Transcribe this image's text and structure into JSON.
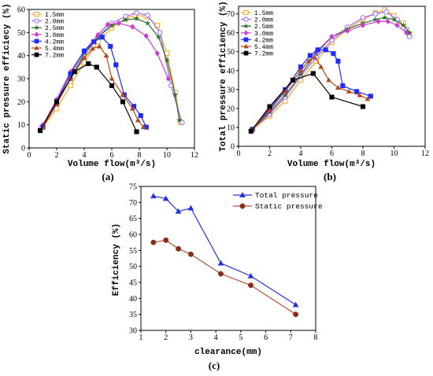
{
  "chart_data": [
    {
      "type": "line",
      "panel_label": "(a)",
      "xlabel": "Volume flow(m³/s)",
      "ylabel": "Static pressure efficiecy (%)",
      "xlim": [
        0,
        12
      ],
      "ylim": [
        0,
        60
      ],
      "xticks": [
        0,
        2,
        4,
        6,
        8,
        10,
        12
      ],
      "yticks": [
        0,
        10,
        20,
        30,
        40,
        50,
        60
      ],
      "grid": false,
      "legend_position": "top-left",
      "series": [
        {
          "name": "1.5mm",
          "color": "#f5a623",
          "marker": "hollow-square",
          "x": [
            1.0,
            2.0,
            3.0,
            4.0,
            5.0,
            6.0,
            7.0,
            7.7,
            8.5,
            9.3,
            10.0,
            10.6,
            11.0
          ],
          "y": [
            9,
            17,
            27,
            37,
            46,
            52,
            56,
            57.5,
            57,
            53,
            41,
            24,
            11
          ]
        },
        {
          "name": "2.0mm",
          "color": "#9b6bff",
          "marker": "hollow-circle",
          "x": [
            0.9,
            2.0,
            3.0,
            4.0,
            5.0,
            6.0,
            7.0,
            7.8,
            8.6,
            9.5,
            10.3,
            11.1
          ],
          "y": [
            9,
            19,
            30,
            40,
            48,
            54,
            57,
            58.5,
            57.5,
            50,
            27,
            11
          ]
        },
        {
          "name": "2.5mm",
          "color": "#2f6f2f",
          "marker": "star",
          "x": [
            1.0,
            2.0,
            3.0,
            4.0,
            5.0,
            6.0,
            7.0,
            7.8,
            8.6,
            9.4,
            10.0,
            10.6,
            10.9
          ],
          "y": [
            9,
            20,
            30,
            41,
            48,
            53,
            55.5,
            56,
            54,
            48,
            38,
            23,
            12
          ]
        },
        {
          "name": "3.0mm",
          "color": "#c83cd0",
          "marker": "diamond",
          "x": [
            1.0,
            2.0,
            3.0,
            4.0,
            5.0,
            5.7,
            6.5,
            7.5,
            8.5,
            9.3,
            10.1
          ],
          "y": [
            10,
            21,
            33,
            42,
            49,
            53.5,
            54,
            52.5,
            48.5,
            41,
            30
          ]
        },
        {
          "name": "4.2mm",
          "color": "#1f2bff",
          "marker": "square",
          "x": [
            1.0,
            2.0,
            3.0,
            4.0,
            4.7,
            5.3,
            5.9,
            6.3,
            6.9,
            7.6,
            8.1,
            8.5
          ],
          "y": [
            9,
            20,
            32,
            42,
            46,
            48,
            44,
            36,
            23,
            18,
            14,
            9
          ]
        },
        {
          "name": "5.4mm",
          "color": "#b34a1d",
          "marker": "triangle",
          "x": [
            1.0,
            2.0,
            3.0,
            4.0,
            4.6,
            5.1,
            5.6,
            6.0,
            6.8,
            7.5,
            7.9,
            8.3
          ],
          "y": [
            9,
            19,
            30,
            39,
            43,
            44,
            40,
            30,
            23,
            17,
            12,
            9
          ]
        },
        {
          "name": "7.2mm",
          "color": "#000000",
          "marker": "square",
          "x": [
            0.8,
            2.0,
            3.3,
            4.3,
            4.9,
            6.0,
            6.8,
            7.8
          ],
          "y": [
            7.5,
            20,
            33,
            36.5,
            35,
            27,
            20,
            7
          ]
        }
      ]
    },
    {
      "type": "line",
      "panel_label": "(b)",
      "xlabel": "Volume flow(m³/s)",
      "ylabel": "Total pressure efficiency (%)",
      "xlim": [
        0,
        12
      ],
      "ylim": [
        0,
        74
      ],
      "xticks": [
        0,
        2,
        4,
        6,
        8,
        10,
        12
      ],
      "yticks": [
        0,
        10,
        20,
        30,
        40,
        50,
        60,
        70
      ],
      "grid": false,
      "legend_position": "top-left",
      "series": [
        {
          "name": "1.5mm",
          "color": "#f5a623",
          "marker": "hollow-square",
          "x": [
            0.9,
            2.0,
            3.0,
            4.0,
            5.0,
            6.0,
            7.0,
            8.0,
            8.8,
            9.4,
            10.0,
            10.6,
            11.0
          ],
          "y": [
            9,
            16,
            24,
            35,
            45,
            55,
            62,
            67,
            70.5,
            72,
            69,
            65,
            59
          ]
        },
        {
          "name": "2.0mm",
          "color": "#9b6bff",
          "marker": "hollow-circle",
          "x": [
            0.9,
            2.0,
            3.0,
            4.0,
            5.0,
            6.0,
            7.0,
            8.0,
            8.8,
            9.5,
            10.2,
            10.8,
            11.0
          ],
          "y": [
            9,
            17,
            26,
            37,
            47,
            56,
            63,
            68,
            70,
            71,
            67,
            62,
            58
          ]
        },
        {
          "name": "2.5mm",
          "color": "#2f6f2f",
          "marker": "star",
          "x": [
            0.9,
            2.0,
            3.0,
            4.0,
            5.0,
            6.0,
            7.0,
            8.0,
            8.8,
            9.4,
            10.0,
            10.6,
            11.0
          ],
          "y": [
            9,
            18,
            27,
            38,
            49,
            58,
            62,
            65,
            67,
            68,
            67,
            64,
            60
          ]
        },
        {
          "name": "3.0mm",
          "color": "#c83cd0",
          "marker": "diamond",
          "x": [
            0.9,
            2.0,
            3.0,
            4.0,
            5.0,
            6.0,
            7.0,
            8.0,
            9.0,
            9.6,
            10.2,
            10.8
          ],
          "y": [
            9,
            19,
            29,
            40,
            50,
            58,
            61,
            64,
            66,
            66,
            64,
            60
          ]
        },
        {
          "name": "4.2mm",
          "color": "#1f2bff",
          "marker": "square",
          "x": [
            0.9,
            2.0,
            3.0,
            4.0,
            4.6,
            5.1,
            5.6,
            6.1,
            6.4,
            6.7,
            7.6,
            8.5
          ],
          "y": [
            9,
            20,
            30,
            42,
            48,
            51,
            51,
            49,
            45,
            32,
            29,
            26.5
          ]
        },
        {
          "name": "5.4mm",
          "color": "#b34a1d",
          "marker": "triangle",
          "x": [
            0.9,
            2.0,
            3.0,
            4.0,
            4.5,
            4.9,
            5.3,
            5.8,
            6.4,
            7.1,
            7.8,
            8.3
          ],
          "y": [
            9,
            19,
            29,
            40,
            45,
            47,
            42,
            35,
            31,
            29,
            27,
            25
          ]
        },
        {
          "name": "7.2mm",
          "color": "#000000",
          "marker": "square",
          "x": [
            0.8,
            2.0,
            3.5,
            4.8,
            6.0,
            8.0
          ],
          "y": [
            8,
            21,
            35,
            38.5,
            26,
            21
          ]
        }
      ]
    },
    {
      "type": "line",
      "panel_label": "(c)",
      "xlabel": "clearance(mm)",
      "ylabel": "Efficiency (%)",
      "xlim": [
        1,
        8
      ],
      "ylim": [
        30,
        75
      ],
      "xticks": [
        1,
        2,
        3,
        4,
        5,
        6,
        7,
        8
      ],
      "yticks": [
        30,
        35,
        40,
        45,
        50,
        55,
        60,
        65,
        70,
        75
      ],
      "grid": false,
      "legend_position": "top-right",
      "series": [
        {
          "name": "Total pressure",
          "color": "#2233dd",
          "marker_color": "#2233dd",
          "marker": "triangle",
          "x": [
            1.5,
            2.0,
            2.5,
            3.0,
            4.2,
            5.4,
            7.2
          ],
          "y": [
            72,
            71.2,
            67.2,
            68.2,
            51,
            47,
            38
          ]
        },
        {
          "name": "Static pressure",
          "color": "#b5533a",
          "marker_color": "#8b2d14",
          "marker": "circle",
          "x": [
            1.5,
            2.0,
            2.5,
            3.0,
            4.2,
            5.4,
            7.2
          ],
          "y": [
            57.5,
            58.2,
            55.5,
            53.8,
            47.7,
            44.1,
            35
          ]
        }
      ]
    }
  ]
}
